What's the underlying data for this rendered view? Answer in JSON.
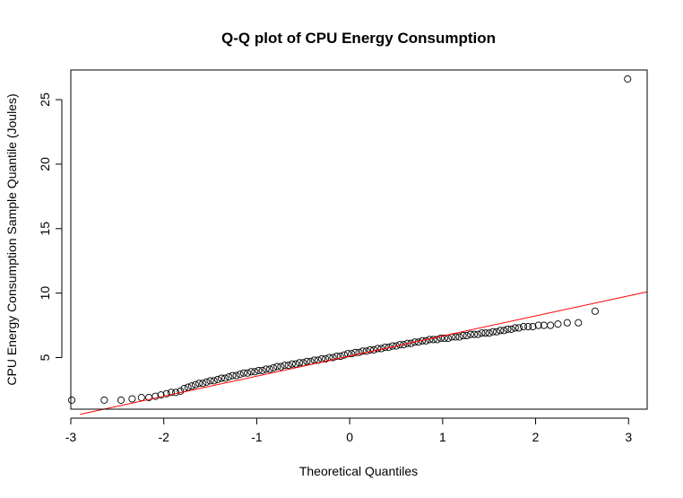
{
  "chart_data": {
    "type": "scatter",
    "title": "Q-Q plot of CPU Energy Consumption",
    "xlabel": "Theoretical Quantiles",
    "ylabel": "CPU Energy Consumption Sample Quantile (Joules)",
    "xlim": [
      -3.0,
      3.2
    ],
    "ylim": [
      1.0,
      27.3
    ],
    "xticks": [
      -3,
      -2,
      -1,
      0,
      1,
      2,
      3
    ],
    "yticks": [
      5,
      10,
      15,
      20,
      25
    ],
    "grid": false,
    "legend": "none",
    "colors": {
      "points": "#000000",
      "reference_line": "#ff0000",
      "frame": "#000000"
    },
    "reference_line": {
      "x": [
        -2.9,
        3.2
      ],
      "y": [
        0.6,
        10.1
      ]
    },
    "series": [
      {
        "x": [
          -2.99,
          -2.64,
          -2.46,
          -2.34,
          -2.24,
          -2.16,
          -2.09,
          -2.03,
          -1.97,
          -1.92,
          -1.87,
          -1.82,
          -1.78,
          -1.74,
          -1.7,
          -1.66,
          -1.62,
          -1.58,
          -1.54,
          -1.5,
          -1.46,
          -1.42,
          -1.38,
          -1.34,
          -1.3,
          -1.26,
          -1.22,
          -1.18,
          -1.14,
          -1.1,
          -1.06,
          -1.02,
          -0.98,
          -0.94,
          -0.9,
          -0.86,
          -0.82,
          -0.78,
          -0.74,
          -0.7,
          -0.66,
          -0.62,
          -0.58,
          -0.54,
          -0.5,
          -0.46,
          -0.42,
          -0.38,
          -0.34,
          -0.3,
          -0.26,
          -0.22,
          -0.18,
          -0.14,
          -0.1,
          -0.06,
          -0.02,
          0.02,
          0.06,
          0.1,
          0.14,
          0.18,
          0.22,
          0.26,
          0.3,
          0.34,
          0.38,
          0.42,
          0.46,
          0.5,
          0.54,
          0.58,
          0.62,
          0.66,
          0.7,
          0.74,
          0.78,
          0.82,
          0.86,
          0.9,
          0.94,
          0.98,
          1.02,
          1.06,
          1.1,
          1.14,
          1.18,
          1.22,
          1.26,
          1.3,
          1.34,
          1.38,
          1.42,
          1.46,
          1.5,
          1.54,
          1.58,
          1.62,
          1.66,
          1.7,
          1.74,
          1.78,
          1.82,
          1.87,
          1.92,
          1.97,
          2.03,
          2.09,
          2.16,
          2.24,
          2.34,
          2.46,
          2.64,
          2.99
        ],
        "y": [
          1.7,
          1.7,
          1.7,
          1.8,
          1.9,
          1.9,
          2.0,
          2.1,
          2.2,
          2.3,
          2.3,
          2.4,
          2.6,
          2.7,
          2.8,
          2.9,
          3.0,
          3.0,
          3.1,
          3.2,
          3.2,
          3.3,
          3.4,
          3.4,
          3.5,
          3.6,
          3.6,
          3.7,
          3.8,
          3.8,
          3.9,
          3.9,
          4.0,
          4.0,
          4.1,
          4.1,
          4.2,
          4.3,
          4.3,
          4.4,
          4.4,
          4.5,
          4.5,
          4.6,
          4.6,
          4.7,
          4.7,
          4.8,
          4.8,
          4.9,
          4.9,
          5.0,
          5.0,
          5.1,
          5.1,
          5.2,
          5.3,
          5.3,
          5.4,
          5.4,
          5.5,
          5.5,
          5.6,
          5.6,
          5.7,
          5.7,
          5.8,
          5.8,
          5.9,
          5.9,
          6.0,
          6.0,
          6.1,
          6.1,
          6.2,
          6.2,
          6.3,
          6.3,
          6.4,
          6.4,
          6.4,
          6.5,
          6.5,
          6.5,
          6.6,
          6.6,
          6.6,
          6.7,
          6.7,
          6.8,
          6.8,
          6.8,
          6.9,
          6.9,
          6.9,
          7.0,
          7.0,
          7.1,
          7.1,
          7.2,
          7.2,
          7.3,
          7.3,
          7.4,
          7.4,
          7.4,
          7.5,
          7.5,
          7.5,
          7.6,
          7.7,
          7.7,
          8.6,
          26.6
        ]
      }
    ]
  }
}
